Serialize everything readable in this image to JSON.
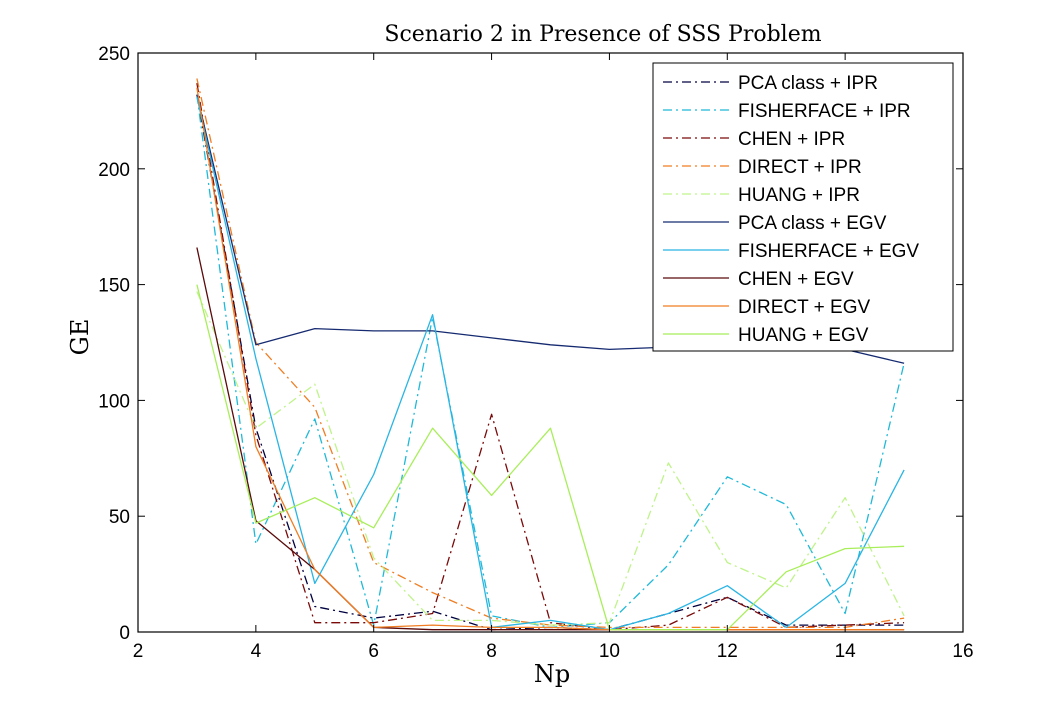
{
  "chart_data": {
    "type": "line",
    "title": "Scenario 2 in Presence of SSS Problem",
    "xlabel": "Np",
    "ylabel": "GE",
    "xlim": [
      2,
      16
    ],
    "ylim": [
      0,
      250
    ],
    "xticks": [
      "2",
      "4",
      "6",
      "8",
      "10",
      "12",
      "14",
      "16"
    ],
    "yticks": [
      "0",
      "50",
      "100",
      "150",
      "200",
      "250"
    ],
    "grid": false,
    "legend_position": "top-right",
    "x": [
      3,
      4,
      5,
      6,
      7,
      8,
      9,
      10,
      11,
      12,
      13,
      14,
      15
    ],
    "series": [
      {
        "name": "PCA class + IPR",
        "color": "#000040",
        "dash": "dashdot",
        "values": [
          232,
          88,
          11,
          6,
          9,
          1,
          2,
          1,
          8,
          15,
          3,
          3,
          3
        ]
      },
      {
        "name": "FISHERFACE + IPR",
        "color": "#1fb9d8",
        "dash": "dashdot",
        "values": [
          232,
          38,
          92,
          3,
          136,
          7,
          2,
          4,
          29,
          67,
          55,
          8,
          116
        ]
      },
      {
        "name": "CHEN + IPR",
        "color": "#7a0a0a",
        "dash": "dashdot",
        "values": [
          237,
          85,
          4,
          4,
          8,
          94,
          4,
          1,
          3,
          15,
          2,
          3,
          4
        ]
      },
      {
        "name": "DIRECT + IPR",
        "color": "#f07d22",
        "dash": "dashdot",
        "values": [
          239,
          125,
          97,
          30,
          17,
          6,
          3,
          2,
          2,
          2,
          2,
          2,
          6
        ]
      },
      {
        "name": "HUANG + IPR",
        "color": "#bff38a",
        "dash": "dashdot",
        "values": [
          147,
          88,
          107,
          32,
          5,
          5,
          3,
          4,
          73,
          30,
          19,
          58,
          7
        ]
      },
      {
        "name": "PCA class + EGV",
        "color": "#152a70",
        "dash": "solid",
        "values": [
          232,
          124,
          131,
          130,
          130,
          127,
          124,
          122,
          123,
          125,
          124,
          122,
          116
        ]
      },
      {
        "name": "FISHERFACE + EGV",
        "color": "#29b5e4",
        "dash": "solid",
        "values": [
          231,
          118,
          21,
          68,
          137,
          2,
          5,
          1,
          8,
          20,
          2,
          21,
          70
        ]
      },
      {
        "name": "CHEN + EGV",
        "color": "#5a0a0a",
        "dash": "solid",
        "values": [
          166,
          48,
          27,
          2,
          1,
          1,
          1,
          1,
          1,
          1,
          1,
          1,
          1
        ]
      },
      {
        "name": "DIRECT + EGV",
        "color": "#f07d22",
        "dash": "solid",
        "values": [
          235,
          80,
          27,
          2,
          3,
          2,
          2,
          1,
          1,
          1,
          1,
          1,
          1
        ]
      },
      {
        "name": "HUANG + EGV",
        "color": "#a8ee5a",
        "dash": "solid",
        "values": [
          150,
          47,
          58,
          45,
          88,
          59,
          88,
          1,
          1,
          1,
          26,
          36,
          37
        ]
      }
    ]
  }
}
